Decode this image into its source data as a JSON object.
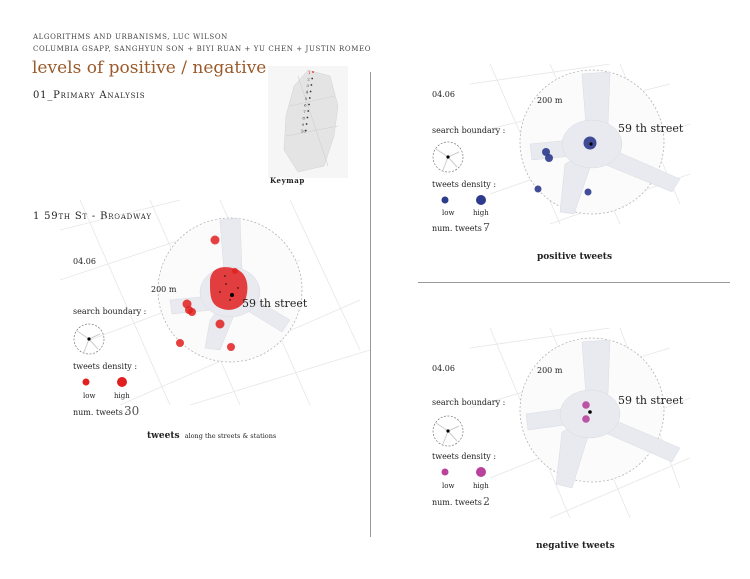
{
  "header": {
    "line1": "Algorithms and Urbanisms, Luc Wilson",
    "line2": "Columbia GSAPP, Sanghyun Son + Biyi Ruan + Yu Chen + Justin Romeo"
  },
  "title": "levels of positive / negative",
  "section": "01_Primary Analysis",
  "keymap": {
    "label": "Keymap",
    "numbers": [
      "1",
      "2",
      "3",
      "4",
      "5",
      "6",
      "7",
      "8",
      "9",
      "10"
    ]
  },
  "main": {
    "heading": "1  59th St - Broadway",
    "date": "04.06",
    "distance": "200 m",
    "street": "59 th street",
    "search_boundary": "search boundary :",
    "tweets_density": "tweets density :",
    "low": "low",
    "high": "high",
    "num_tweets_label": "num. tweets :",
    "num_tweets_value": "30",
    "caption_bold": "tweets",
    "caption_rest": "along the streets & stations",
    "color": "#e02020"
  },
  "positive": {
    "date": "04.06",
    "distance": "200 m",
    "street": "59 th street",
    "search_boundary": "search boundary :",
    "tweets_density": "tweets density :",
    "low": "low",
    "high": "high",
    "num_tweets_label": "num. tweets :",
    "num_tweets_value": "7",
    "caption": "positive tweets",
    "color": "#2e3a8c"
  },
  "negative": {
    "date": "04.06",
    "distance": "200 m",
    "street": "59 th street",
    "search_boundary": "search boundary :",
    "tweets_density": "tweets density :",
    "low": "low",
    "high": "high",
    "num_tweets_label": "num. tweets :",
    "num_tweets_value": "2",
    "caption": "negative tweets",
    "color": "#b8429c"
  }
}
